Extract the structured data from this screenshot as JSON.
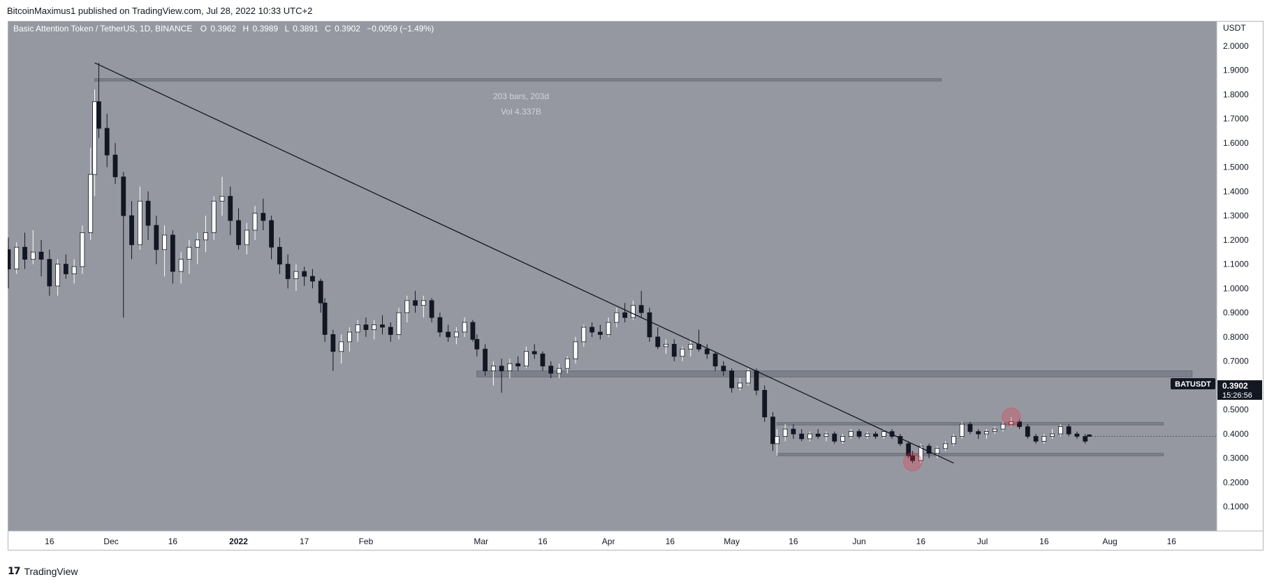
{
  "header": {
    "publisher_line": "BitcoinMaximus1 published on TradingView.com, Jul 28, 2022 10:33 UTC+2"
  },
  "footer": {
    "logo_mark": "17",
    "brand": "TradingView"
  },
  "legend": {
    "symbol": "Basic Attention Token / TetherUS, 1D, BINANCE",
    "o_label": "O",
    "o_value": "0.3962",
    "h_label": "H",
    "h_value": "0.3989",
    "l_label": "L",
    "l_value": "0.3891",
    "c_label": "C",
    "c_value": "0.3902",
    "change": "−0.0059 (−1.49%)"
  },
  "axis": {
    "currency": "USDT"
  },
  "price_tag": {
    "symbol": "BATUSDT",
    "price": "0.3902",
    "countdown": "15:26:56"
  },
  "measure": {
    "bars": "203 bars, 203d",
    "volume": "Vol 4.337B"
  },
  "colors": {
    "plot_bg": "#9598a1",
    "candle_up": "#ffffff",
    "candle_down": "#131722",
    "zone": "#787b86",
    "marker": "#f23645",
    "price_tag_bg": "#131722"
  },
  "chart_data": {
    "type": "candlestick",
    "y_scale": "linear",
    "ylim": [
      0.0,
      2.1
    ],
    "y_ticks": [
      0.1,
      0.2,
      0.3,
      0.4,
      0.5,
      0.6,
      0.7,
      0.8,
      0.9,
      1.0,
      1.1,
      1.2,
      1.3,
      1.4,
      1.5,
      1.6,
      1.7,
      1.8,
      1.9,
      2.0
    ],
    "y_tick_labels": [
      "0.1000",
      "0.2000",
      "0.3000",
      "0.4000",
      "0.5000",
      "0.6000",
      "0.7000",
      "0.8000",
      "0.9000",
      "1.0000",
      "1.1000",
      "1.2000",
      "1.3000",
      "1.4000",
      "1.5000",
      "1.6000",
      "1.7000",
      "1.8000",
      "1.9000",
      "2.0000"
    ],
    "x_tick_labels": [
      "16",
      "Dec",
      "16",
      "2022",
      "17",
      "Feb",
      "Mar",
      "16",
      "Apr",
      "16",
      "May",
      "16",
      "Jun",
      "16",
      "Jul",
      "16",
      "Aug",
      "16"
    ],
    "x_tick_dates": [
      "2021-11-16",
      "2021-12-01",
      "2021-12-16",
      "2022-01-01",
      "2022-01-17",
      "2022-02-01",
      "2022-03-01",
      "2022-03-16",
      "2022-04-01",
      "2022-04-16",
      "2022-05-01",
      "2022-05-16",
      "2022-06-01",
      "2022-06-16",
      "2022-07-01",
      "2022-07-16",
      "2022-08-01",
      "2022-08-16"
    ],
    "xlim": [
      "2021-11-06",
      "2022-08-27"
    ],
    "candles": [
      {
        "d": "2021-11-06",
        "o": 1.16,
        "h": 1.21,
        "l": 1.0,
        "c": 1.08
      },
      {
        "d": "2021-11-08",
        "o": 1.08,
        "h": 1.19,
        "l": 1.06,
        "c": 1.17
      },
      {
        "d": "2021-11-10",
        "o": 1.17,
        "h": 1.23,
        "l": 1.08,
        "c": 1.12
      },
      {
        "d": "2021-11-12",
        "o": 1.12,
        "h": 1.24,
        "l": 1.1,
        "c": 1.15
      },
      {
        "d": "2021-11-14",
        "o": 1.15,
        "h": 1.2,
        "l": 1.05,
        "c": 1.12
      },
      {
        "d": "2021-11-16",
        "o": 1.12,
        "h": 1.16,
        "l": 0.97,
        "c": 1.01
      },
      {
        "d": "2021-11-18",
        "o": 1.01,
        "h": 1.12,
        "l": 0.97,
        "c": 1.1
      },
      {
        "d": "2021-11-20",
        "o": 1.1,
        "h": 1.14,
        "l": 1.04,
        "c": 1.06
      },
      {
        "d": "2021-11-22",
        "o": 1.06,
        "h": 1.12,
        "l": 1.02,
        "c": 1.09
      },
      {
        "d": "2021-11-24",
        "o": 1.09,
        "h": 1.26,
        "l": 1.06,
        "c": 1.23
      },
      {
        "d": "2021-11-26",
        "o": 1.23,
        "h": 1.58,
        "l": 1.2,
        "c": 1.47
      },
      {
        "d": "2021-11-27",
        "o": 1.47,
        "h": 1.82,
        "l": 1.38,
        "c": 1.77
      },
      {
        "d": "2021-11-28",
        "o": 1.77,
        "h": 1.93,
        "l": 1.62,
        "c": 1.66
      },
      {
        "d": "2021-11-30",
        "o": 1.66,
        "h": 1.72,
        "l": 1.5,
        "c": 1.55
      },
      {
        "d": "2021-12-02",
        "o": 1.55,
        "h": 1.6,
        "l": 1.43,
        "c": 1.46
      },
      {
        "d": "2021-12-04",
        "o": 1.46,
        "h": 1.48,
        "l": 0.88,
        "c": 1.3
      },
      {
        "d": "2021-12-06",
        "o": 1.3,
        "h": 1.36,
        "l": 1.12,
        "c": 1.18
      },
      {
        "d": "2021-12-08",
        "o": 1.18,
        "h": 1.42,
        "l": 1.16,
        "c": 1.36
      },
      {
        "d": "2021-12-10",
        "o": 1.36,
        "h": 1.4,
        "l": 1.2,
        "c": 1.26
      },
      {
        "d": "2021-12-12",
        "o": 1.26,
        "h": 1.3,
        "l": 1.1,
        "c": 1.16
      },
      {
        "d": "2021-12-14",
        "o": 1.16,
        "h": 1.26,
        "l": 1.05,
        "c": 1.22
      },
      {
        "d": "2021-12-16",
        "o": 1.22,
        "h": 1.24,
        "l": 1.02,
        "c": 1.07
      },
      {
        "d": "2021-12-18",
        "o": 1.07,
        "h": 1.15,
        "l": 1.02,
        "c": 1.12
      },
      {
        "d": "2021-12-20",
        "o": 1.12,
        "h": 1.2,
        "l": 1.06,
        "c": 1.17
      },
      {
        "d": "2021-12-22",
        "o": 1.17,
        "h": 1.23,
        "l": 1.1,
        "c": 1.2
      },
      {
        "d": "2021-12-24",
        "o": 1.2,
        "h": 1.3,
        "l": 1.15,
        "c": 1.23
      },
      {
        "d": "2021-12-26",
        "o": 1.23,
        "h": 1.38,
        "l": 1.2,
        "c": 1.36
      },
      {
        "d": "2021-12-28",
        "o": 1.36,
        "h": 1.46,
        "l": 1.3,
        "c": 1.38
      },
      {
        "d": "2021-12-30",
        "o": 1.38,
        "h": 1.42,
        "l": 1.22,
        "c": 1.28
      },
      {
        "d": "2022-01-01",
        "o": 1.28,
        "h": 1.33,
        "l": 1.16,
        "c": 1.18
      },
      {
        "d": "2022-01-03",
        "o": 1.18,
        "h": 1.27,
        "l": 1.14,
        "c": 1.24
      },
      {
        "d": "2022-01-05",
        "o": 1.24,
        "h": 1.34,
        "l": 1.2,
        "c": 1.31
      },
      {
        "d": "2022-01-07",
        "o": 1.31,
        "h": 1.37,
        "l": 1.24,
        "c": 1.28
      },
      {
        "d": "2022-01-09",
        "o": 1.28,
        "h": 1.3,
        "l": 1.12,
        "c": 1.17
      },
      {
        "d": "2022-01-11",
        "o": 1.17,
        "h": 1.21,
        "l": 1.06,
        "c": 1.1
      },
      {
        "d": "2022-01-13",
        "o": 1.1,
        "h": 1.14,
        "l": 1.0,
        "c": 1.04
      },
      {
        "d": "2022-01-15",
        "o": 1.04,
        "h": 1.1,
        "l": 0.99,
        "c": 1.07
      },
      {
        "d": "2022-01-17",
        "o": 1.07,
        "h": 1.09,
        "l": 1.01,
        "c": 1.05
      },
      {
        "d": "2022-01-19",
        "o": 1.05,
        "h": 1.08,
        "l": 1.0,
        "c": 1.03
      },
      {
        "d": "2022-01-21",
        "o": 1.03,
        "h": 1.04,
        "l": 0.9,
        "c": 0.94
      },
      {
        "d": "2022-01-22",
        "o": 0.94,
        "h": 0.96,
        "l": 0.78,
        "c": 0.81
      },
      {
        "d": "2022-01-24",
        "o": 0.81,
        "h": 0.83,
        "l": 0.66,
        "c": 0.74
      },
      {
        "d": "2022-01-26",
        "o": 0.74,
        "h": 0.81,
        "l": 0.69,
        "c": 0.78
      },
      {
        "d": "2022-01-28",
        "o": 0.78,
        "h": 0.84,
        "l": 0.74,
        "c": 0.82
      },
      {
        "d": "2022-01-30",
        "o": 0.82,
        "h": 0.87,
        "l": 0.78,
        "c": 0.85
      },
      {
        "d": "2022-02-01",
        "o": 0.85,
        "h": 0.88,
        "l": 0.8,
        "c": 0.83
      },
      {
        "d": "2022-02-03",
        "o": 0.83,
        "h": 0.87,
        "l": 0.79,
        "c": 0.85
      },
      {
        "d": "2022-02-05",
        "o": 0.85,
        "h": 0.89,
        "l": 0.81,
        "c": 0.84
      },
      {
        "d": "2022-02-07",
        "o": 0.84,
        "h": 0.86,
        "l": 0.78,
        "c": 0.81
      },
      {
        "d": "2022-02-09",
        "o": 0.81,
        "h": 0.92,
        "l": 0.79,
        "c": 0.9
      },
      {
        "d": "2022-02-11",
        "o": 0.9,
        "h": 0.97,
        "l": 0.86,
        "c": 0.95
      },
      {
        "d": "2022-02-13",
        "o": 0.95,
        "h": 0.99,
        "l": 0.9,
        "c": 0.93
      },
      {
        "d": "2022-02-15",
        "o": 0.93,
        "h": 0.97,
        "l": 0.88,
        "c": 0.95
      },
      {
        "d": "2022-02-17",
        "o": 0.95,
        "h": 0.96,
        "l": 0.86,
        "c": 0.88
      },
      {
        "d": "2022-02-19",
        "o": 0.88,
        "h": 0.9,
        "l": 0.8,
        "c": 0.82
      },
      {
        "d": "2022-02-21",
        "o": 0.82,
        "h": 0.85,
        "l": 0.78,
        "c": 0.8
      },
      {
        "d": "2022-02-23",
        "o": 0.8,
        "h": 0.84,
        "l": 0.77,
        "c": 0.82
      },
      {
        "d": "2022-02-25",
        "o": 0.82,
        "h": 0.88,
        "l": 0.8,
        "c": 0.86
      },
      {
        "d": "2022-02-27",
        "o": 0.86,
        "h": 0.87,
        "l": 0.78,
        "c": 0.79
      },
      {
        "d": "2022-02-28",
        "o": 0.79,
        "h": 0.81,
        "l": 0.72,
        "c": 0.75
      },
      {
        "d": "2022-03-02",
        "o": 0.75,
        "h": 0.77,
        "l": 0.64,
        "c": 0.66
      },
      {
        "d": "2022-03-04",
        "o": 0.66,
        "h": 0.7,
        "l": 0.6,
        "c": 0.68
      },
      {
        "d": "2022-03-06",
        "o": 0.68,
        "h": 0.71,
        "l": 0.57,
        "c": 0.66
      },
      {
        "d": "2022-03-08",
        "o": 0.66,
        "h": 0.71,
        "l": 0.63,
        "c": 0.69
      },
      {
        "d": "2022-03-10",
        "o": 0.69,
        "h": 0.72,
        "l": 0.66,
        "c": 0.68
      },
      {
        "d": "2022-03-12",
        "o": 0.68,
        "h": 0.76,
        "l": 0.67,
        "c": 0.74
      },
      {
        "d": "2022-03-14",
        "o": 0.74,
        "h": 0.77,
        "l": 0.71,
        "c": 0.73
      },
      {
        "d": "2022-03-16",
        "o": 0.73,
        "h": 0.74,
        "l": 0.66,
        "c": 0.68
      },
      {
        "d": "2022-03-18",
        "o": 0.68,
        "h": 0.7,
        "l": 0.63,
        "c": 0.65
      },
      {
        "d": "2022-03-20",
        "o": 0.65,
        "h": 0.69,
        "l": 0.63,
        "c": 0.67
      },
      {
        "d": "2022-03-22",
        "o": 0.67,
        "h": 0.72,
        "l": 0.65,
        "c": 0.71
      },
      {
        "d": "2022-03-24",
        "o": 0.71,
        "h": 0.8,
        "l": 0.69,
        "c": 0.78
      },
      {
        "d": "2022-03-26",
        "o": 0.78,
        "h": 0.85,
        "l": 0.76,
        "c": 0.84
      },
      {
        "d": "2022-03-28",
        "o": 0.84,
        "h": 0.86,
        "l": 0.8,
        "c": 0.82
      },
      {
        "d": "2022-03-30",
        "o": 0.82,
        "h": 0.85,
        "l": 0.79,
        "c": 0.81
      },
      {
        "d": "2022-04-01",
        "o": 0.81,
        "h": 0.88,
        "l": 0.8,
        "c": 0.86
      },
      {
        "d": "2022-04-03",
        "o": 0.86,
        "h": 0.92,
        "l": 0.84,
        "c": 0.9
      },
      {
        "d": "2022-04-05",
        "o": 0.9,
        "h": 0.94,
        "l": 0.86,
        "c": 0.88
      },
      {
        "d": "2022-04-07",
        "o": 0.88,
        "h": 0.95,
        "l": 0.87,
        "c": 0.93
      },
      {
        "d": "2022-04-09",
        "o": 0.93,
        "h": 0.99,
        "l": 0.88,
        "c": 0.9
      },
      {
        "d": "2022-04-11",
        "o": 0.9,
        "h": 0.92,
        "l": 0.78,
        "c": 0.8
      },
      {
        "d": "2022-04-13",
        "o": 0.8,
        "h": 0.84,
        "l": 0.75,
        "c": 0.76
      },
      {
        "d": "2022-04-15",
        "o": 0.76,
        "h": 0.79,
        "l": 0.73,
        "c": 0.77
      },
      {
        "d": "2022-04-17",
        "o": 0.77,
        "h": 0.79,
        "l": 0.7,
        "c": 0.72
      },
      {
        "d": "2022-04-19",
        "o": 0.72,
        "h": 0.76,
        "l": 0.7,
        "c": 0.75
      },
      {
        "d": "2022-04-21",
        "o": 0.75,
        "h": 0.79,
        "l": 0.72,
        "c": 0.77
      },
      {
        "d": "2022-04-23",
        "o": 0.77,
        "h": 0.83,
        "l": 0.74,
        "c": 0.75
      },
      {
        "d": "2022-04-25",
        "o": 0.75,
        "h": 0.77,
        "l": 0.71,
        "c": 0.73
      },
      {
        "d": "2022-04-27",
        "o": 0.73,
        "h": 0.74,
        "l": 0.66,
        "c": 0.68
      },
      {
        "d": "2022-04-29",
        "o": 0.68,
        "h": 0.7,
        "l": 0.64,
        "c": 0.66
      },
      {
        "d": "2022-05-01",
        "o": 0.66,
        "h": 0.67,
        "l": 0.57,
        "c": 0.59
      },
      {
        "d": "2022-05-03",
        "o": 0.59,
        "h": 0.63,
        "l": 0.58,
        "c": 0.61
      },
      {
        "d": "2022-05-05",
        "o": 0.61,
        "h": 0.67,
        "l": 0.6,
        "c": 0.66
      },
      {
        "d": "2022-05-07",
        "o": 0.66,
        "h": 0.67,
        "l": 0.56,
        "c": 0.58
      },
      {
        "d": "2022-05-09",
        "o": 0.58,
        "h": 0.6,
        "l": 0.45,
        "c": 0.47
      },
      {
        "d": "2022-05-11",
        "o": 0.47,
        "h": 0.49,
        "l": 0.33,
        "c": 0.36
      },
      {
        "d": "2022-05-12",
        "o": 0.36,
        "h": 0.42,
        "l": 0.31,
        "c": 0.39
      },
      {
        "d": "2022-05-14",
        "o": 0.39,
        "h": 0.44,
        "l": 0.37,
        "c": 0.42
      },
      {
        "d": "2022-05-16",
        "o": 0.42,
        "h": 0.44,
        "l": 0.38,
        "c": 0.4
      },
      {
        "d": "2022-05-18",
        "o": 0.4,
        "h": 0.42,
        "l": 0.37,
        "c": 0.38
      },
      {
        "d": "2022-05-20",
        "o": 0.38,
        "h": 0.41,
        "l": 0.37,
        "c": 0.4
      },
      {
        "d": "2022-05-22",
        "o": 0.4,
        "h": 0.42,
        "l": 0.38,
        "c": 0.39
      },
      {
        "d": "2022-05-24",
        "o": 0.39,
        "h": 0.41,
        "l": 0.37,
        "c": 0.4
      },
      {
        "d": "2022-05-26",
        "o": 0.4,
        "h": 0.41,
        "l": 0.36,
        "c": 0.37
      },
      {
        "d": "2022-05-28",
        "o": 0.37,
        "h": 0.4,
        "l": 0.36,
        "c": 0.39
      },
      {
        "d": "2022-05-30",
        "o": 0.39,
        "h": 0.42,
        "l": 0.38,
        "c": 0.41
      },
      {
        "d": "2022-06-01",
        "o": 0.41,
        "h": 0.42,
        "l": 0.38,
        "c": 0.39
      },
      {
        "d": "2022-06-03",
        "o": 0.39,
        "h": 0.41,
        "l": 0.38,
        "c": 0.4
      },
      {
        "d": "2022-06-05",
        "o": 0.4,
        "h": 0.41,
        "l": 0.38,
        "c": 0.39
      },
      {
        "d": "2022-06-07",
        "o": 0.39,
        "h": 0.42,
        "l": 0.38,
        "c": 0.41
      },
      {
        "d": "2022-06-09",
        "o": 0.41,
        "h": 0.42,
        "l": 0.38,
        "c": 0.39
      },
      {
        "d": "2022-06-11",
        "o": 0.39,
        "h": 0.4,
        "l": 0.35,
        "c": 0.36
      },
      {
        "d": "2022-06-13",
        "o": 0.36,
        "h": 0.37,
        "l": 0.3,
        "c": 0.31
      },
      {
        "d": "2022-06-14",
        "o": 0.31,
        "h": 0.33,
        "l": 0.28,
        "c": 0.29
      },
      {
        "d": "2022-06-16",
        "o": 0.29,
        "h": 0.36,
        "l": 0.28,
        "c": 0.35
      },
      {
        "d": "2022-06-18",
        "o": 0.35,
        "h": 0.36,
        "l": 0.3,
        "c": 0.32
      },
      {
        "d": "2022-06-20",
        "o": 0.32,
        "h": 0.35,
        "l": 0.3,
        "c": 0.34
      },
      {
        "d": "2022-06-22",
        "o": 0.34,
        "h": 0.37,
        "l": 0.33,
        "c": 0.36
      },
      {
        "d": "2022-06-24",
        "o": 0.36,
        "h": 0.4,
        "l": 0.35,
        "c": 0.39
      },
      {
        "d": "2022-06-26",
        "o": 0.39,
        "h": 0.45,
        "l": 0.38,
        "c": 0.44
      },
      {
        "d": "2022-06-28",
        "o": 0.44,
        "h": 0.45,
        "l": 0.4,
        "c": 0.41
      },
      {
        "d": "2022-06-30",
        "o": 0.41,
        "h": 0.42,
        "l": 0.38,
        "c": 0.4
      },
      {
        "d": "2022-07-02",
        "o": 0.4,
        "h": 0.42,
        "l": 0.38,
        "c": 0.41
      },
      {
        "d": "2022-07-04",
        "o": 0.41,
        "h": 0.43,
        "l": 0.4,
        "c": 0.42
      },
      {
        "d": "2022-07-06",
        "o": 0.42,
        "h": 0.45,
        "l": 0.41,
        "c": 0.44
      },
      {
        "d": "2022-07-08",
        "o": 0.44,
        "h": 0.47,
        "l": 0.43,
        "c": 0.45
      },
      {
        "d": "2022-07-10",
        "o": 0.45,
        "h": 0.46,
        "l": 0.42,
        "c": 0.43
      },
      {
        "d": "2022-07-12",
        "o": 0.43,
        "h": 0.44,
        "l": 0.38,
        "c": 0.39
      },
      {
        "d": "2022-07-14",
        "o": 0.39,
        "h": 0.4,
        "l": 0.36,
        "c": 0.37
      },
      {
        "d": "2022-07-16",
        "o": 0.37,
        "h": 0.4,
        "l": 0.36,
        "c": 0.39
      },
      {
        "d": "2022-07-18",
        "o": 0.39,
        "h": 0.42,
        "l": 0.38,
        "c": 0.4
      },
      {
        "d": "2022-07-20",
        "o": 0.4,
        "h": 0.44,
        "l": 0.39,
        "c": 0.43
      },
      {
        "d": "2022-07-22",
        "o": 0.43,
        "h": 0.44,
        "l": 0.39,
        "c": 0.4
      },
      {
        "d": "2022-07-24",
        "o": 0.4,
        "h": 0.41,
        "l": 0.38,
        "c": 0.39
      },
      {
        "d": "2022-07-26",
        "o": 0.39,
        "h": 0.4,
        "l": 0.36,
        "c": 0.37
      },
      {
        "d": "2022-07-27",
        "o": 0.3962,
        "h": 0.3989,
        "l": 0.3891,
        "c": 0.3902
      }
    ],
    "trendline": {
      "start": {
        "d": "2021-11-27",
        "price": 1.93
      },
      "end": {
        "d": "2022-06-24",
        "price": 0.28
      }
    },
    "zones": [
      {
        "name": "top-zone",
        "from": "2021-11-27",
        "to": "2022-06-21",
        "low": 1.855,
        "high": 1.865
      },
      {
        "name": "mid-zone",
        "from": "2022-02-28",
        "to": "2022-08-21",
        "low": 0.635,
        "high": 0.66
      },
      {
        "name": "range-high-zone",
        "from": "2022-05-12",
        "to": "2022-08-14",
        "low": 0.437,
        "high": 0.447
      },
      {
        "name": "range-low-zone",
        "from": "2022-05-12",
        "to": "2022-08-14",
        "low": 0.31,
        "high": 0.32
      }
    ],
    "markers": [
      {
        "name": "low-marker",
        "d": "2022-06-14",
        "price": 0.285
      },
      {
        "name": "high-marker",
        "d": "2022-07-08",
        "price": 0.47
      }
    ],
    "last_price": 0.3902
  }
}
